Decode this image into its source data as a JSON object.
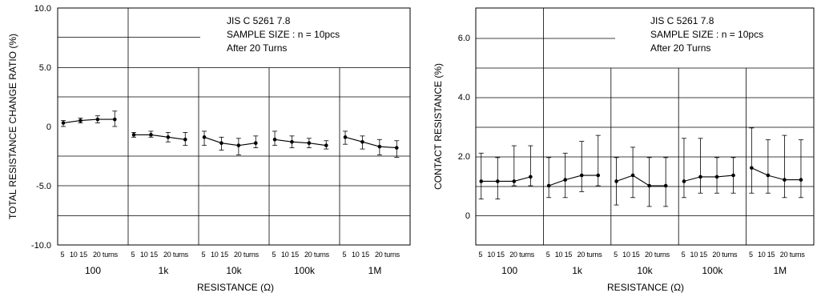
{
  "chart_data": [
    {
      "type": "line",
      "ylabel": "TOTAL RESISTANCE CHANGE RATIO (%)",
      "xlabel": "RESISTANCE (Ω)",
      "ylim": [
        -10.0,
        10.0
      ],
      "yticks": [
        "10.0",
        "5.0",
        "0",
        "-5.0",
        "-10.0"
      ],
      "ytick_values": [
        10,
        5,
        0,
        -5,
        -10
      ],
      "note_lines": [
        "JIS  C  5261  7.8",
        "SAMPLE  SIZE : n = 10pcs",
        "After  20  Turns"
      ],
      "subticks": [
        "5",
        "10",
        "15",
        "20 turns"
      ],
      "subtick_values": [
        5,
        10,
        15,
        20
      ],
      "groups": [
        {
          "name": "100",
          "points": [
            {
              "turns": 5,
              "y": 0.3,
              "low": 0.0,
              "high": 0.5
            },
            {
              "turns": 10,
              "y": 0.5,
              "low": 0.3,
              "high": 0.7
            },
            {
              "turns": 15,
              "y": 0.6,
              "low": 0.3,
              "high": 0.9
            },
            {
              "turns": 20,
              "y": 0.6,
              "low": 0.0,
              "high": 1.3
            }
          ]
        },
        {
          "name": "1k",
          "points": [
            {
              "turns": 5,
              "y": -0.7,
              "low": -0.9,
              "high": -0.5
            },
            {
              "turns": 10,
              "y": -0.7,
              "low": -0.9,
              "high": -0.4
            },
            {
              "turns": 15,
              "y": -0.9,
              "low": -1.3,
              "high": -0.5
            },
            {
              "turns": 20,
              "y": -1.1,
              "low": -1.6,
              "high": -0.5
            }
          ]
        },
        {
          "name": "10k",
          "points": [
            {
              "turns": 5,
              "y": -0.9,
              "low": -1.6,
              "high": -0.4
            },
            {
              "turns": 10,
              "y": -1.4,
              "low": -2.0,
              "high": -0.9
            },
            {
              "turns": 15,
              "y": -1.6,
              "low": -2.4,
              "high": -1.0
            },
            {
              "turns": 20,
              "y": -1.4,
              "low": -1.8,
              "high": -0.8
            }
          ]
        },
        {
          "name": "100k",
          "points": [
            {
              "turns": 5,
              "y": -1.1,
              "low": -1.6,
              "high": -0.4
            },
            {
              "turns": 10,
              "y": -1.3,
              "low": -1.8,
              "high": -0.8
            },
            {
              "turns": 15,
              "y": -1.4,
              "low": -1.8,
              "high": -1.0
            },
            {
              "turns": 20,
              "y": -1.6,
              "low": -1.9,
              "high": -1.2
            }
          ]
        },
        {
          "name": "1M",
          "points": [
            {
              "turns": 5,
              "y": -0.9,
              "low": -1.5,
              "high": -0.4
            },
            {
              "turns": 10,
              "y": -1.3,
              "low": -1.9,
              "high": -0.8
            },
            {
              "turns": 15,
              "y": -1.7,
              "low": -2.4,
              "high": -1.1
            },
            {
              "turns": 20,
              "y": -1.8,
              "low": -2.6,
              "high": -1.2
            }
          ]
        }
      ]
    },
    {
      "type": "line",
      "ylabel": "CONTACT RESISTANCE (%)",
      "xlabel": "RESISTANCE (Ω)",
      "ylim": [
        -1.0,
        7.0
      ],
      "yticks": [
        "6.0",
        "4.0",
        "2.0",
        "0"
      ],
      "ytick_values": [
        6,
        4,
        2,
        0
      ],
      "note_lines": [
        "JIS  C  5261  7.8",
        "SAMPLE  SIZE : n = 10pcs",
        "After  20  Turns"
      ],
      "subticks": [
        "5",
        "10",
        "15",
        "20 turns"
      ],
      "subtick_values": [
        5,
        10,
        15,
        20
      ],
      "groups": [
        {
          "name": "100",
          "points": [
            {
              "turns": 5,
              "y": 1.15,
              "low": 0.55,
              "high": 2.1
            },
            {
              "turns": 10,
              "y": 1.15,
              "low": 0.55,
              "high": 1.95
            },
            {
              "turns": 15,
              "y": 1.15,
              "low": 1.0,
              "high": 2.35
            },
            {
              "turns": 20,
              "y": 1.3,
              "low": 1.0,
              "high": 2.35
            }
          ]
        },
        {
          "name": "1k",
          "points": [
            {
              "turns": 5,
              "y": 1.0,
              "low": 0.6,
              "high": 1.95
            },
            {
              "turns": 10,
              "y": 1.2,
              "low": 0.6,
              "high": 2.1
            },
            {
              "turns": 15,
              "y": 1.35,
              "low": 0.8,
              "high": 2.5
            },
            {
              "turns": 20,
              "y": 1.35,
              "low": 1.0,
              "high": 2.7
            }
          ]
        },
        {
          "name": "10k",
          "points": [
            {
              "turns": 5,
              "y": 1.15,
              "low": 0.35,
              "high": 1.95
            },
            {
              "turns": 10,
              "y": 1.35,
              "low": 0.6,
              "high": 2.3
            },
            {
              "turns": 15,
              "y": 1.0,
              "low": 0.3,
              "high": 1.95
            },
            {
              "turns": 20,
              "y": 1.0,
              "low": 0.3,
              "high": 1.95
            }
          ]
        },
        {
          "name": "100k",
          "points": [
            {
              "turns": 5,
              "y": 1.15,
              "low": 0.6,
              "high": 2.6
            },
            {
              "turns": 10,
              "y": 1.3,
              "low": 0.75,
              "high": 2.6
            },
            {
              "turns": 15,
              "y": 1.3,
              "low": 0.75,
              "high": 1.95
            },
            {
              "turns": 20,
              "y": 1.35,
              "low": 0.75,
              "high": 1.95
            }
          ]
        },
        {
          "name": "1M",
          "points": [
            {
              "turns": 5,
              "y": 1.6,
              "low": 0.75,
              "high": 2.95
            },
            {
              "turns": 10,
              "y": 1.35,
              "low": 0.75,
              "high": 2.55
            },
            {
              "turns": 15,
              "y": 1.2,
              "low": 0.6,
              "high": 2.7
            },
            {
              "turns": 20,
              "y": 1.2,
              "low": 0.6,
              "high": 2.55
            }
          ]
        }
      ]
    }
  ]
}
